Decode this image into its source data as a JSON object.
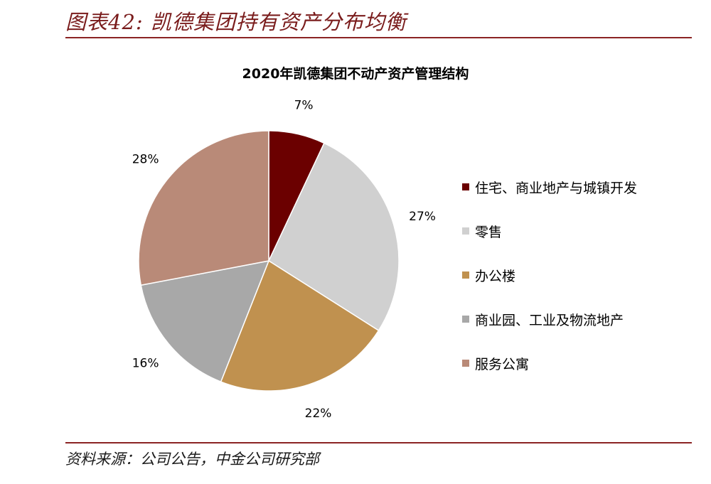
{
  "header": {
    "title": "图表42: 凯德集团持有资产分布均衡"
  },
  "footer": {
    "source": "资料来源：公司公告，中金公司研究部"
  },
  "chart_data": {
    "type": "pie",
    "title": "2020年凯德集团不动产资产管理结构",
    "slices": [
      {
        "label": "住宅、商业地产与城镇开发",
        "value": 7,
        "value_label": "7%",
        "color": "#6b0000"
      },
      {
        "label": "零售",
        "value": 27,
        "value_label": "27%",
        "color": "#d0d0d0"
      },
      {
        "label": "办公楼",
        "value": 22,
        "value_label": "22%",
        "color": "#c0914f"
      },
      {
        "label": "商业园、工业及物流地产",
        "value": 16,
        "value_label": "16%",
        "color": "#a8a8a8"
      },
      {
        "label": "服务公寓",
        "value": 28,
        "value_label": "28%",
        "color": "#b98a78"
      }
    ],
    "legend_position": "right"
  }
}
